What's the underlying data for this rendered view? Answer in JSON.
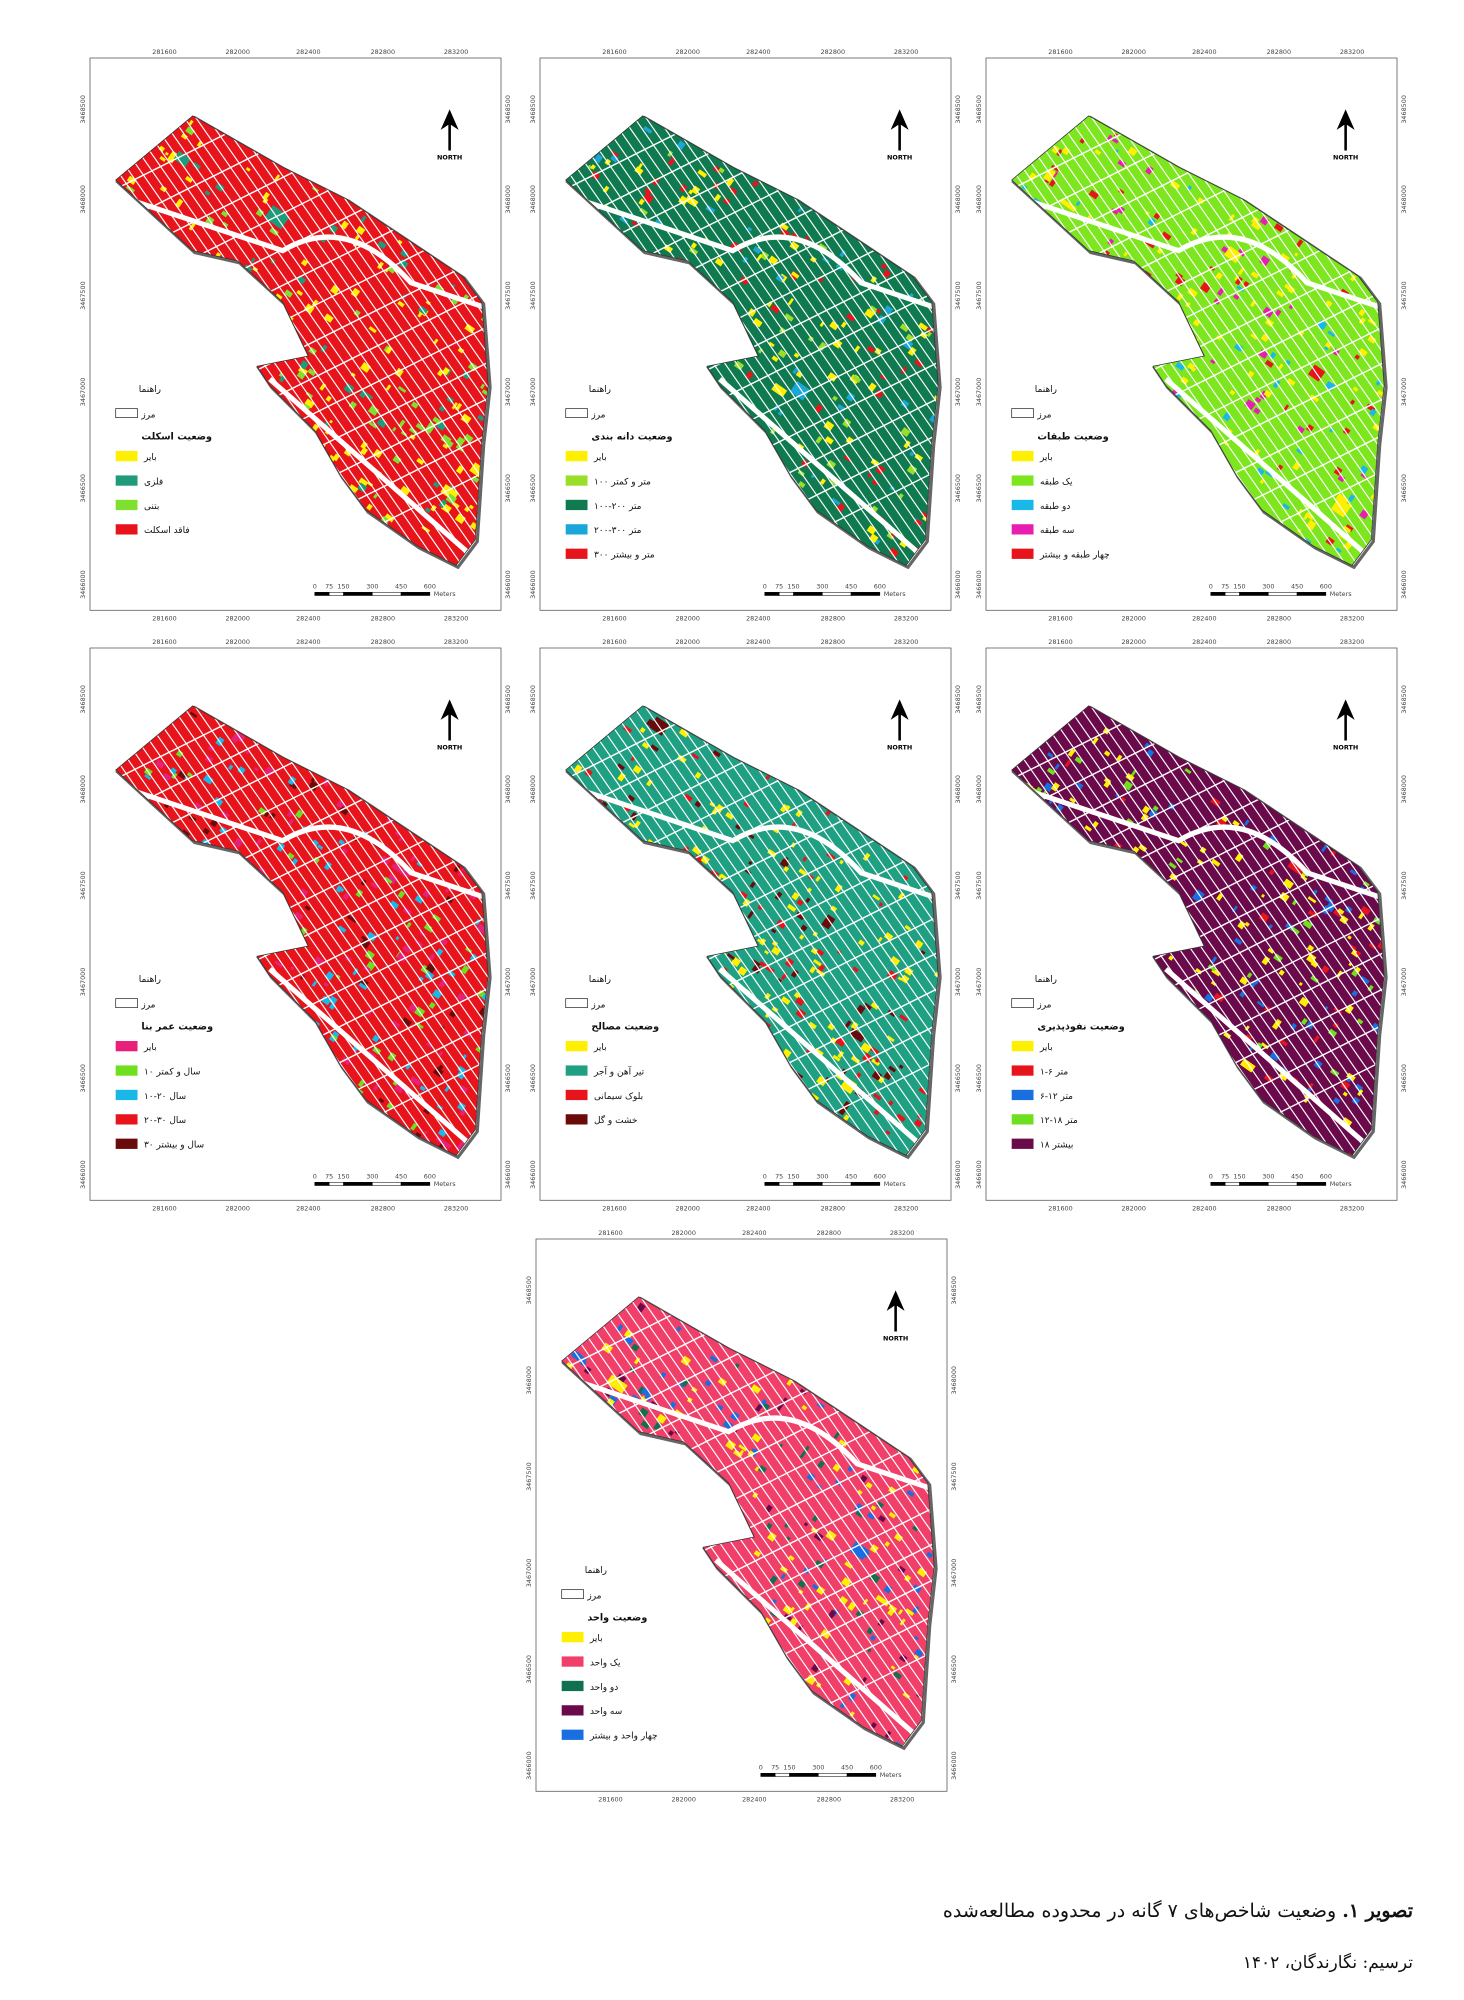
{
  "legend_title": "راهنما",
  "boundary": "مرز",
  "north": "NORTH",
  "x_ticks": [
    "281600",
    "282000",
    "282400",
    "282800",
    "283200"
  ],
  "y_ticks": [
    "3468500",
    "3468000",
    "3467500",
    "3467000",
    "3466500",
    "3466000"
  ],
  "scale": [
    "0",
    "75",
    "150",
    "300",
    "450",
    "600",
    "Meters"
  ],
  "panels": [
    {
      "heading": "وضعیت اسکلت",
      "items": [
        {
          "label": "بایر",
          "color": "#ffef00"
        },
        {
          "label": "فلزی",
          "color": "#1f9a7a"
        },
        {
          "label": "بتنی",
          "color": "#7fe030"
        },
        {
          "label": "فاقد اسکلت",
          "color": "#e8141c"
        }
      ]
    },
    {
      "heading": "وضعیت دانه بندی",
      "items": [
        {
          "label": "بایر",
          "color": "#ffef00"
        },
        {
          "label": "۱۰۰ متر و کمتر",
          "color": "#9ade2a"
        },
        {
          "label": "۱۰۰-۲۰۰ متر",
          "color": "#0f7a50"
        },
        {
          "label": "۲۰۰-۳۰۰ متر",
          "color": "#1aa6d8"
        },
        {
          "label": "۳۰۰ متر و بیشتر",
          "color": "#e8141c"
        }
      ]
    },
    {
      "heading": "وضعیت طبقات",
      "items": [
        {
          "label": "بایر",
          "color": "#ffef00"
        },
        {
          "label": "یک طبقه",
          "color": "#7de61e"
        },
        {
          "label": "دو طبقه",
          "color": "#1ab8e8"
        },
        {
          "label": "سه طبقه",
          "color": "#e81eb0"
        },
        {
          "label": "چهار طبقه و بیشتر",
          "color": "#e8141c"
        }
      ]
    },
    {
      "heading": "وضعیت عمر بنا",
      "items": [
        {
          "label": "بایر",
          "color": "#e8207a"
        },
        {
          "label": "۱۰ سال و کمتر",
          "color": "#6fe020"
        },
        {
          "label": "۱۰-۲۰ سال",
          "color": "#1ab8e8"
        },
        {
          "label": "۲۰-۳۰ سال",
          "color": "#e8141c"
        },
        {
          "label": "۳۰ سال و بیشتر",
          "color": "#6b0a0a"
        }
      ]
    },
    {
      "heading": "وضعیت مصالح",
      "items": [
        {
          "label": "بایر",
          "color": "#ffef00"
        },
        {
          "label": "تیر آهن و آجر",
          "color": "#1fa083"
        },
        {
          "label": "بلوک سیمانی",
          "color": "#e8141c"
        },
        {
          "label": "خشت و گل",
          "color": "#6b0a0a"
        }
      ]
    },
    {
      "heading": "وضعیت نفوذپذیری",
      "items": [
        {
          "label": "بایر",
          "color": "#ffef00"
        },
        {
          "label": "۱-۶ متر",
          "color": "#e8141c"
        },
        {
          "label": "۶-۱۲ متر",
          "color": "#1a6fe0"
        },
        {
          "label": "۱۲-۱۸ متر",
          "color": "#6fe020"
        },
        {
          "label": "بیشتر ۱۸",
          "color": "#6b0a4a"
        }
      ]
    },
    {
      "heading": "وضعیت واحد",
      "items": [
        {
          "label": "بایر",
          "color": "#ffef00"
        },
        {
          "label": "یک واحد",
          "color": "#f0406a"
        },
        {
          "label": "دو واحد",
          "color": "#107050"
        },
        {
          "label": "سه واحد",
          "color": "#6b0a4a"
        },
        {
          "label": "چهار واحد و بیشتر",
          "color": "#1a6fe0"
        }
      ]
    }
  ],
  "caption": {
    "label": "تصویر ۱.",
    "text": " وضعیت شاخص‌های ۷ گانه در محدوده مطالعه‌شده"
  },
  "credit": "ترسیم: نگارندگان، ۱۴۰۲"
}
